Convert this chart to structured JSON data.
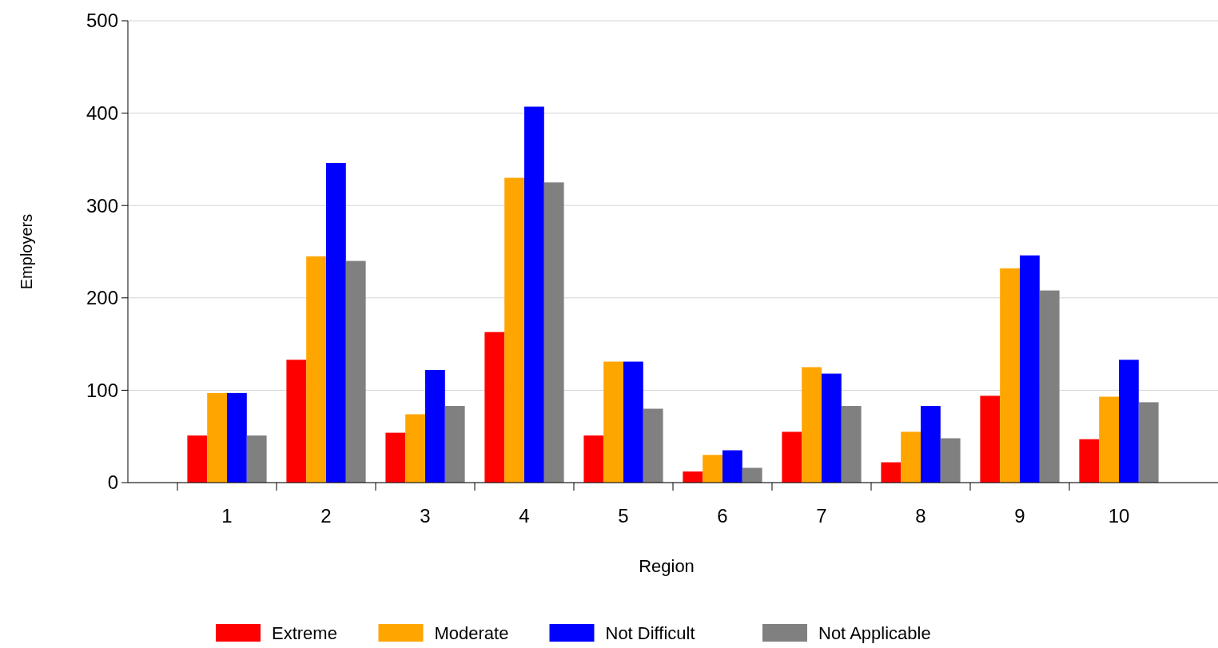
{
  "chart_data": {
    "type": "bar",
    "xlabel": "Region",
    "ylabel": "Employers",
    "categories": [
      "1",
      "2",
      "3",
      "4",
      "5",
      "6",
      "7",
      "8",
      "9",
      "10"
    ],
    "series": [
      {
        "name": "Extreme",
        "color": "#ff0000",
        "values": [
          51,
          133,
          54,
          163,
          51,
          12,
          55,
          22,
          94,
          47
        ]
      },
      {
        "name": "Moderate",
        "color": "#ffa500",
        "values": [
          97,
          245,
          74,
          330,
          131,
          30,
          125,
          55,
          232,
          93
        ]
      },
      {
        "name": "Not Difficult",
        "color": "#0000ff",
        "values": [
          97,
          346,
          122,
          407,
          131,
          35,
          118,
          83,
          246,
          133
        ]
      },
      {
        "name": "Not Applicable",
        "color": "#808080",
        "values": [
          51,
          240,
          83,
          325,
          80,
          16,
          83,
          48,
          208,
          87
        ]
      }
    ],
    "ylim": [
      0,
      500
    ],
    "yticks": [
      0,
      100,
      200,
      300,
      400,
      500
    ],
    "grid": "y",
    "legend": "bottom"
  }
}
